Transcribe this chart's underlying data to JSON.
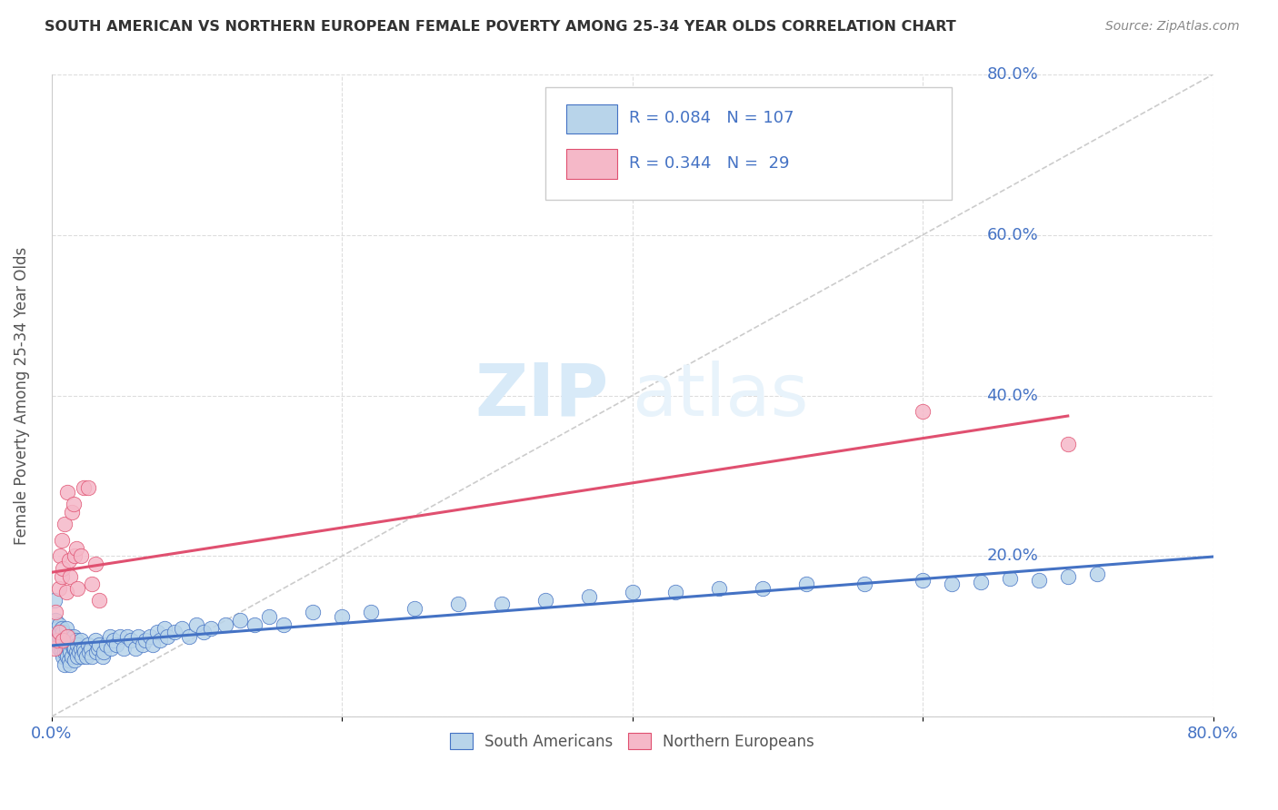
{
  "title": "SOUTH AMERICAN VS NORTHERN EUROPEAN FEMALE POVERTY AMONG 25-34 YEAR OLDS CORRELATION CHART",
  "source": "Source: ZipAtlas.com",
  "ylabel": "Female Poverty Among 25-34 Year Olds",
  "xlim": [
    0,
    0.8
  ],
  "ylim": [
    0,
    0.8
  ],
  "xticks": [
    0.0,
    0.2,
    0.4,
    0.6,
    0.8
  ],
  "yticks": [
    0.0,
    0.2,
    0.4,
    0.6,
    0.8
  ],
  "xticklabels": [
    "0.0%",
    "",
    "",
    "",
    "80.0%"
  ],
  "yticklabels_right": [
    "0.0%",
    "20.0%",
    "40.0%",
    "60.0%",
    "80.0%"
  ],
  "blue_color": "#b8d4ea",
  "pink_color": "#f5b8c8",
  "blue_line_color": "#4472c4",
  "pink_line_color": "#e05070",
  "diag_color": "#cccccc",
  "tick_color": "#4472c4",
  "watermark_color": "#d8eaf8",
  "R_blue": 0.084,
  "N_blue": 107,
  "R_pink": 0.344,
  "N_pink": 29,
  "blue_x": [
    0.002,
    0.003,
    0.003,
    0.004,
    0.004,
    0.005,
    0.005,
    0.005,
    0.006,
    0.006,
    0.007,
    0.007,
    0.007,
    0.008,
    0.008,
    0.008,
    0.009,
    0.009,
    0.009,
    0.01,
    0.01,
    0.01,
    0.011,
    0.011,
    0.012,
    0.012,
    0.012,
    0.013,
    0.013,
    0.014,
    0.014,
    0.015,
    0.015,
    0.016,
    0.016,
    0.017,
    0.017,
    0.018,
    0.018,
    0.019,
    0.02,
    0.02,
    0.021,
    0.022,
    0.023,
    0.024,
    0.025,
    0.026,
    0.027,
    0.028,
    0.03,
    0.031,
    0.032,
    0.033,
    0.035,
    0.036,
    0.038,
    0.04,
    0.041,
    0.043,
    0.045,
    0.047,
    0.05,
    0.052,
    0.055,
    0.058,
    0.06,
    0.063,
    0.065,
    0.068,
    0.07,
    0.073,
    0.075,
    0.078,
    0.08,
    0.085,
    0.09,
    0.095,
    0.1,
    0.105,
    0.11,
    0.12,
    0.13,
    0.14,
    0.15,
    0.16,
    0.18,
    0.2,
    0.22,
    0.25,
    0.28,
    0.31,
    0.34,
    0.37,
    0.4,
    0.43,
    0.46,
    0.49,
    0.52,
    0.56,
    0.6,
    0.62,
    0.64,
    0.66,
    0.68,
    0.7,
    0.72
  ],
  "blue_y": [
    0.145,
    0.12,
    0.1,
    0.09,
    0.11,
    0.085,
    0.1,
    0.115,
    0.09,
    0.105,
    0.08,
    0.095,
    0.11,
    0.075,
    0.09,
    0.105,
    0.08,
    0.095,
    0.065,
    0.08,
    0.095,
    0.11,
    0.075,
    0.09,
    0.07,
    0.085,
    0.1,
    0.065,
    0.08,
    0.075,
    0.09,
    0.085,
    0.1,
    0.07,
    0.085,
    0.08,
    0.095,
    0.075,
    0.09,
    0.08,
    0.085,
    0.095,
    0.075,
    0.085,
    0.08,
    0.075,
    0.09,
    0.08,
    0.085,
    0.075,
    0.095,
    0.08,
    0.085,
    0.09,
    0.075,
    0.08,
    0.09,
    0.1,
    0.085,
    0.095,
    0.09,
    0.1,
    0.085,
    0.1,
    0.095,
    0.085,
    0.1,
    0.09,
    0.095,
    0.1,
    0.09,
    0.105,
    0.095,
    0.11,
    0.1,
    0.105,
    0.11,
    0.1,
    0.115,
    0.105,
    0.11,
    0.115,
    0.12,
    0.115,
    0.125,
    0.115,
    0.13,
    0.125,
    0.13,
    0.135,
    0.14,
    0.14,
    0.145,
    0.15,
    0.155,
    0.155,
    0.16,
    0.16,
    0.165,
    0.165,
    0.17,
    0.165,
    0.168,
    0.172,
    0.17,
    0.175,
    0.178
  ],
  "pink_x": [
    0.002,
    0.003,
    0.004,
    0.005,
    0.005,
    0.006,
    0.007,
    0.007,
    0.008,
    0.008,
    0.009,
    0.01,
    0.011,
    0.011,
    0.012,
    0.013,
    0.014,
    0.015,
    0.016,
    0.017,
    0.018,
    0.02,
    0.022,
    0.025,
    0.028,
    0.03,
    0.033,
    0.6,
    0.7
  ],
  "pink_y": [
    0.085,
    0.13,
    0.095,
    0.16,
    0.105,
    0.2,
    0.175,
    0.22,
    0.185,
    0.095,
    0.24,
    0.155,
    0.28,
    0.1,
    0.195,
    0.175,
    0.255,
    0.265,
    0.2,
    0.21,
    0.16,
    0.2,
    0.285,
    0.285,
    0.165,
    0.19,
    0.145,
    0.38,
    0.34
  ]
}
